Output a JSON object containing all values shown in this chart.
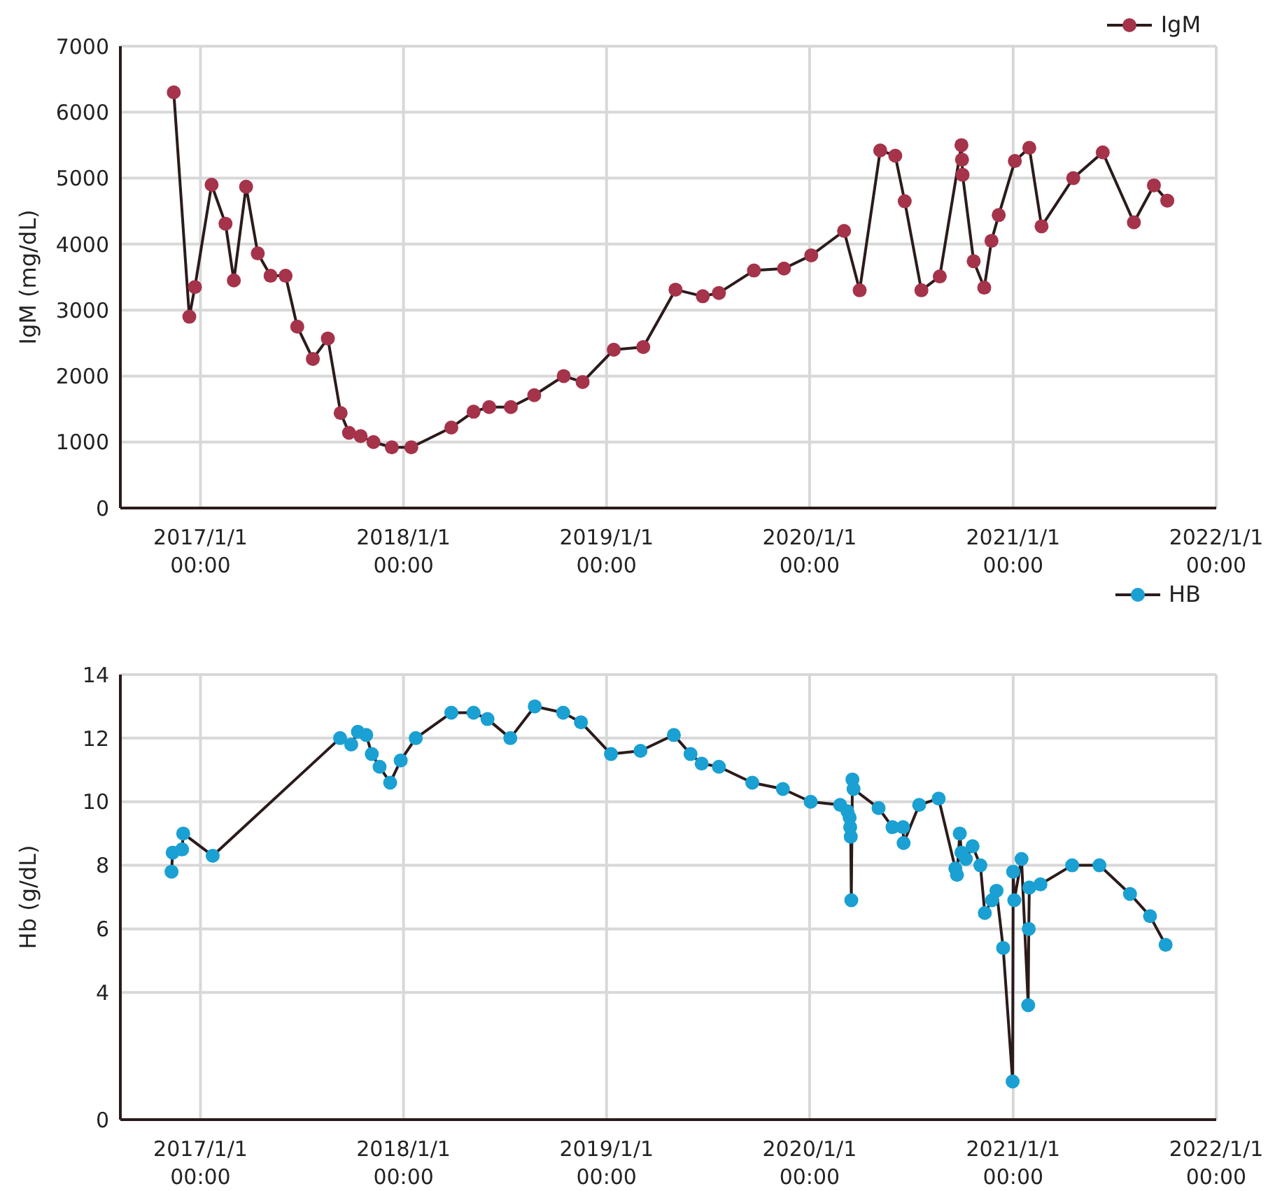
{
  "chart_data": [
    {
      "type": "line",
      "ylabel": "IgM (mg/dL)",
      "grid": true,
      "legend": "top right",
      "marker": "circle",
      "line_style": "solid",
      "xlim": [
        "2016-08-10",
        "2022-01-01"
      ],
      "xticks": [
        {
          "value": "2017-01-01",
          "label": "2017/1/1 00:00"
        },
        {
          "value": "2018-01-01",
          "label": "2018/1/1 00:00"
        },
        {
          "value": "2019-01-01",
          "label": "2019/1/1 00:00"
        },
        {
          "value": "2020-01-01",
          "label": "2020/1/1 00:00"
        },
        {
          "value": "2021-01-01",
          "label": "2021/1/1 00:00"
        },
        {
          "value": "2022-01-01",
          "label": "2022/1/1 00:00"
        }
      ],
      "ylim": [
        0,
        7000
      ],
      "yticks": [
        0,
        1000,
        2000,
        3000,
        4000,
        5000,
        6000,
        7000
      ],
      "x": [
        "2016-11-14",
        "2016-12-12",
        "2016-12-22",
        "2017-01-21",
        "2017-02-15",
        "2017-03-02",
        "2017-03-24",
        "2017-04-14",
        "2017-05-07",
        "2017-06-03",
        "2017-06-24",
        "2017-07-22",
        "2017-08-18",
        "2017-09-10",
        "2017-09-25",
        "2017-10-16",
        "2017-11-08",
        "2017-12-11",
        "2018-01-15",
        "2018-03-28",
        "2018-05-07",
        "2018-06-04",
        "2018-07-13",
        "2018-08-24",
        "2018-10-16",
        "2018-11-19",
        "2019-01-14",
        "2019-03-08",
        "2019-05-05",
        "2019-06-23",
        "2019-07-22",
        "2019-09-23",
        "2019-11-16",
        "2020-01-04",
        "2020-03-03",
        "2020-03-31",
        "2020-05-07",
        "2020-06-03",
        "2020-06-20",
        "2020-07-20",
        "2020-08-22",
        "2020-09-30",
        "2020-10-01",
        "2020-10-02",
        "2020-10-22",
        "2020-11-10",
        "2020-11-23",
        "2020-12-06",
        "2021-01-04",
        "2021-01-30",
        "2021-02-21",
        "2021-04-19",
        "2021-06-11",
        "2021-08-06",
        "2021-09-11",
        "2021-10-05"
      ],
      "series": [
        {
          "name": "IgM",
          "color": "#a5334a",
          "values": [
            6300,
            2900,
            3350,
            4900,
            4310,
            3450,
            4870,
            3860,
            3520,
            3520,
            2750,
            2260,
            2570,
            1440,
            1140,
            1090,
            1000,
            920,
            920,
            1220,
            1460,
            1530,
            1530,
            1710,
            2000,
            1910,
            2400,
            2440,
            3310,
            3210,
            3260,
            3600,
            3630,
            3830,
            4200,
            3300,
            5420,
            5340,
            4650,
            3300,
            3510,
            5500,
            5280,
            5050,
            3740,
            3340,
            4050,
            4440,
            5260,
            5460,
            4270,
            5000,
            5390,
            4330,
            4890,
            4660
          ]
        }
      ]
    },
    {
      "type": "line",
      "ylabel": "Hb (g/dL)",
      "grid": true,
      "legend": "top right",
      "marker": "circle",
      "line_style": "solid",
      "xlim": [
        "2016-08-10",
        "2022-01-01"
      ],
      "xticks": [
        {
          "value": "2017-01-01",
          "label": "2017/1/1 00:00"
        },
        {
          "value": "2018-01-01",
          "label": "2018/1/1 00:00"
        },
        {
          "value": "2019-01-01",
          "label": "2019/1/1 00:00"
        },
        {
          "value": "2020-01-01",
          "label": "2020/1/1 00:00"
        },
        {
          "value": "2021-01-01",
          "label": "2021/1/1 00:00"
        },
        {
          "value": "2022-01-01",
          "label": "2022/1/1 00:00"
        }
      ],
      "ylim": [
        0,
        14
      ],
      "yticks": [
        0,
        4,
        6,
        8,
        10,
        12,
        14
      ],
      "x": [
        "2016-11-10",
        "2016-11-12",
        "2016-11-29",
        "2016-12-01",
        "2017-01-23",
        "2017-09-09",
        "2017-09-29",
        "2017-10-11",
        "2017-10-26",
        "2017-11-05",
        "2017-11-19",
        "2017-12-08",
        "2017-12-27",
        "2018-01-23",
        "2018-03-28",
        "2018-05-07",
        "2018-06-01",
        "2018-07-12",
        "2018-08-25",
        "2018-10-15",
        "2018-11-16",
        "2019-01-09",
        "2019-03-03",
        "2019-05-02",
        "2019-06-01",
        "2019-06-21",
        "2019-07-22",
        "2019-09-20",
        "2019-11-14",
        "2020-01-03",
        "2020-02-25",
        "2020-03-09",
        "2020-03-13",
        "2020-03-14",
        "2020-03-15",
        "2020-03-16",
        "2020-03-18",
        "2020-03-20",
        "2020-05-04",
        "2020-05-29",
        "2020-06-17",
        "2020-06-18",
        "2020-07-16",
        "2020-08-20",
        "2020-09-19",
        "2020-09-22",
        "2020-09-27",
        "2020-09-30",
        "2020-10-08",
        "2020-10-20",
        "2020-11-03",
        "2020-11-11",
        "2020-11-24",
        "2020-12-02",
        "2020-12-14",
        "2020-12-31",
        "2021-01-01",
        "2021-01-03",
        "2021-01-16",
        "2021-01-28",
        "2021-01-29",
        "2021-01-30",
        "2021-02-19",
        "2021-04-17",
        "2021-06-05",
        "2021-07-30",
        "2021-09-04",
        "2021-10-02"
      ],
      "series": [
        {
          "name": "HB",
          "color": "#1aa0d2",
          "values": [
            7.8,
            8.4,
            8.5,
            9.0,
            8.3,
            12.0,
            11.8,
            12.2,
            12.1,
            11.5,
            11.1,
            10.6,
            11.3,
            12.0,
            12.8,
            12.8,
            12.6,
            12.0,
            13.0,
            12.8,
            12.5,
            11.5,
            11.6,
            12.1,
            11.5,
            11.2,
            11.1,
            10.6,
            10.4,
            10.0,
            9.9,
            9.7,
            9.5,
            9.2,
            8.9,
            6.9,
            10.7,
            10.4,
            9.8,
            9.2,
            9.2,
            8.7,
            9.9,
            10.1,
            7.9,
            7.7,
            9.0,
            8.4,
            8.2,
            8.6,
            8.0,
            6.5,
            6.9,
            7.2,
            5.4,
            1.2,
            7.8,
            6.9,
            8.2,
            3.6,
            6.0,
            7.3,
            7.4,
            8.0,
            8.0,
            7.1,
            6.4,
            5.5
          ]
        }
      ]
    }
  ]
}
